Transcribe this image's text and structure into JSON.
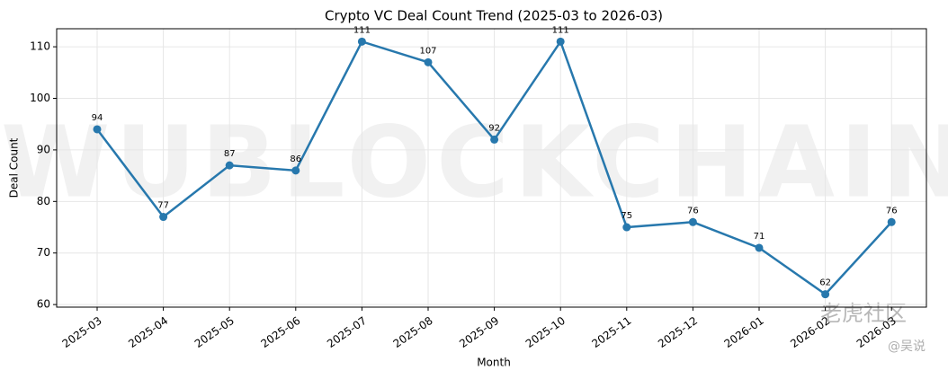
{
  "chart_data": {
    "type": "line",
    "title": "Crypto VC Deal Count Trend (2025-03 to 2026-03)",
    "xlabel": "Month",
    "ylabel": "Deal Count",
    "categories": [
      "2025-03",
      "2025-04",
      "2025-05",
      "2025-06",
      "2025-07",
      "2025-08",
      "2025-09",
      "2025-10",
      "2025-11",
      "2025-12",
      "2026-01",
      "2026-02",
      "2026-03"
    ],
    "series": [
      {
        "name": "Deal Count",
        "color": "#2778ad",
        "values": [
          94,
          77,
          87,
          86,
          111,
          107,
          92,
          111,
          75,
          76,
          71,
          62,
          76
        ]
      }
    ],
    "ylim": [
      59.5,
      113.5
    ],
    "yticks": [
      60,
      70,
      80,
      90,
      100,
      110
    ],
    "grid": true,
    "watermarks": [
      "WUBLOCKCHAIN",
      "老虎社区",
      "@吴说"
    ]
  }
}
